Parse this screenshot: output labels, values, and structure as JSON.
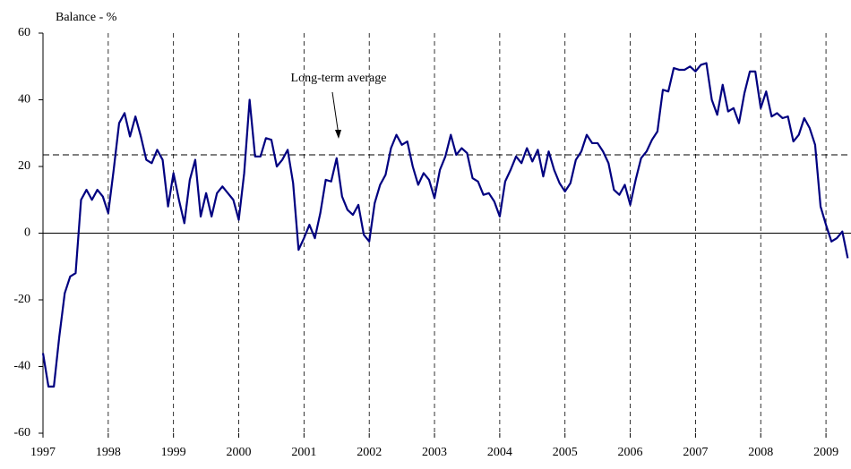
{
  "chart_data": {
    "type": "line",
    "y_label": "Balance  - %",
    "categories": [
      "1997",
      null,
      null,
      null,
      null,
      null,
      null,
      null,
      null,
      null,
      null,
      null,
      "1998",
      null,
      null,
      null,
      null,
      null,
      null,
      null,
      null,
      null,
      null,
      null,
      "1999",
      null,
      null,
      null,
      null,
      null,
      null,
      null,
      null,
      null,
      null,
      null,
      "2000",
      null,
      null,
      null,
      null,
      null,
      null,
      null,
      null,
      null,
      null,
      null,
      "2001",
      null,
      null,
      null,
      null,
      null,
      null,
      null,
      null,
      null,
      null,
      null,
      "2002",
      null,
      null,
      null,
      null,
      null,
      null,
      null,
      null,
      null,
      null,
      null,
      "2003",
      null,
      null,
      null,
      null,
      null,
      null,
      null,
      null,
      null,
      null,
      null,
      "2004",
      null,
      null,
      null,
      null,
      null,
      null,
      null,
      null,
      null,
      null,
      null,
      "2005",
      null,
      null,
      null,
      null,
      null,
      null,
      null,
      null,
      null,
      null,
      null,
      "2006",
      null,
      null,
      null,
      null,
      null,
      null,
      null,
      null,
      null,
      null,
      null,
      "2007",
      null,
      null,
      null,
      null,
      null,
      null,
      null,
      null,
      null,
      null,
      null,
      "2008",
      null,
      null,
      null,
      null,
      null,
      null,
      null,
      null,
      null,
      null,
      null,
      "2009",
      null,
      null,
      null,
      null
    ],
    "values": [
      -36,
      -46,
      -46,
      -31,
      -18,
      -13,
      -12,
      10,
      13,
      10,
      13,
      11,
      6,
      19,
      33,
      36,
      29,
      35,
      29,
      22,
      21,
      25,
      22,
      8,
      18,
      10,
      3,
      16,
      22,
      5,
      12,
      5,
      12,
      14,
      12,
      10,
      4,
      18,
      40,
      23,
      23,
      28.5,
      28,
      20,
      22,
      25,
      15,
      -5,
      -1.5,
      2.5,
      -1.5,
      6,
      16,
      15.5,
      22.5,
      11,
      7,
      5.5,
      8.5,
      -0.5,
      -2.5,
      9,
      14.5,
      17.5,
      25.5,
      29.5,
      26.5,
      27.5,
      20,
      14.5,
      18,
      16,
      10.5,
      19,
      23,
      29.5,
      23.5,
      25.5,
      24,
      16.5,
      15.5,
      11.5,
      12,
      9.5,
      5,
      15.5,
      19,
      23,
      21,
      25.5,
      21.5,
      25,
      17,
      24.5,
      19,
      15,
      12.5,
      15,
      22,
      24.5,
      29.5,
      27,
      27,
      24.5,
      21,
      13,
      11.5,
      14.5,
      8.5,
      16,
      22.5,
      24.5,
      28,
      30.5,
      43,
      42.5,
      49.5,
      49,
      49,
      50,
      48.5,
      50.5,
      51,
      40,
      35.5,
      44.5,
      36.5,
      37.5,
      33,
      42,
      48.5,
      48.5,
      37.5,
      42.5,
      35,
      36,
      34.5,
      35,
      27.5,
      29.5,
      34.5,
      31.5,
      26.5,
      8,
      2.5,
      -2.5,
      -1.5,
      0.5,
      -7.5
    ],
    "color": "#000080",
    "ylim": [
      -60,
      60
    ],
    "yticks": [
      -60,
      -40,
      -20,
      0,
      20,
      40,
      60
    ],
    "reference_lines": [
      {
        "value": 23.5,
        "label": "Long-term average"
      }
    ]
  }
}
